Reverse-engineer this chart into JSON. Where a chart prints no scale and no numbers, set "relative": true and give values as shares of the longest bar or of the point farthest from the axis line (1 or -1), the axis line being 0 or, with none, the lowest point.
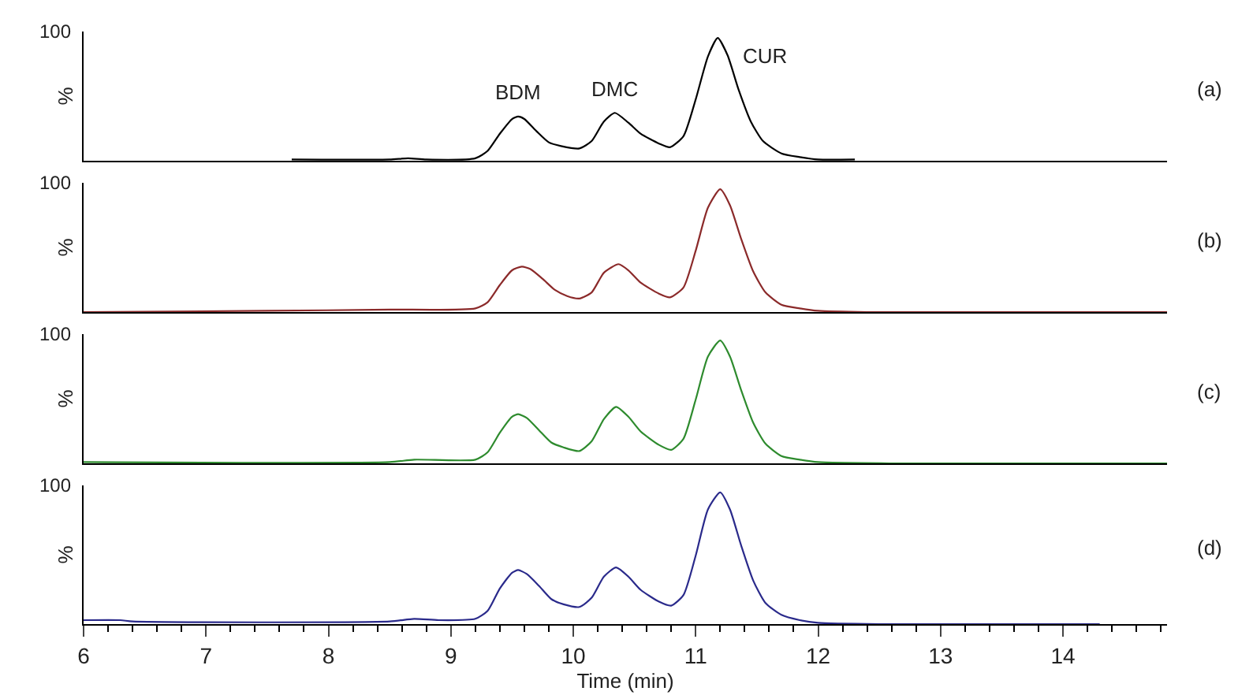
{
  "chart_data": [
    {
      "type": "line",
      "ylabel": "%",
      "relative": true,
      "xlim": [
        6,
        14.85
      ],
      "xticks": [
        6,
        7,
        8,
        9,
        10,
        11,
        12,
        13,
        14
      ],
      "tick_labels": false,
      "series": [
        {
          "color": "#000000",
          "x": [
            7.7,
            8.5,
            8.65,
            8.8,
            9.2,
            9.3,
            9.4,
            9.5,
            9.55,
            9.6,
            9.7,
            9.8,
            9.9,
            10.05,
            10.15,
            10.25,
            10.34,
            10.45,
            10.55,
            10.7,
            10.79,
            10.9,
            11.0,
            11.1,
            11.18,
            11.26,
            11.35,
            11.45,
            11.55,
            11.7,
            11.85,
            12.0,
            12.3
          ],
          "values": [
            0.01,
            0.01,
            0.02,
            0.01,
            0.02,
            0.08,
            0.22,
            0.34,
            0.36,
            0.34,
            0.24,
            0.15,
            0.12,
            0.1,
            0.16,
            0.32,
            0.39,
            0.31,
            0.22,
            0.14,
            0.11,
            0.2,
            0.5,
            0.85,
            1,
            0.86,
            0.58,
            0.32,
            0.16,
            0.06,
            0.03,
            0.01,
            0.01
          ]
        }
      ],
      "annotations": [
        "100",
        {
          "text": "BDM",
          "x": 9.55,
          "y": 0.36
        },
        {
          "text": "DMC",
          "x": 10.34,
          "y": 0.39
        },
        "CUR",
        "(a)"
      ]
    },
    {
      "type": "line",
      "ylabel": "%",
      "relative": true,
      "xlim": [
        6,
        14.85
      ],
      "xticks": [
        6,
        7,
        8,
        9,
        10,
        11,
        12,
        13,
        14
      ],
      "tick_labels": false,
      "series": [
        {
          "color": "#8b2a2a",
          "x": [
            6,
            7.5,
            8.5,
            9.2,
            9.3,
            9.4,
            9.5,
            9.58,
            9.65,
            9.75,
            9.85,
            9.95,
            10.05,
            10.15,
            10.25,
            10.37,
            10.45,
            10.55,
            10.7,
            10.79,
            10.9,
            11.0,
            11.1,
            11.2,
            11.28,
            11.37,
            11.47,
            11.57,
            11.7,
            11.85,
            12.0,
            12.4,
            13.85,
            14.85
          ],
          "values": [
            0,
            0.01,
            0.02,
            0.03,
            0.08,
            0.22,
            0.34,
            0.37,
            0.35,
            0.27,
            0.18,
            0.13,
            0.11,
            0.16,
            0.32,
            0.39,
            0.34,
            0.24,
            0.15,
            0.12,
            0.2,
            0.5,
            0.85,
            1,
            0.87,
            0.6,
            0.33,
            0.16,
            0.06,
            0.03,
            0.01,
            0,
            0,
            0
          ]
        }
      ],
      "annotations": [
        "100",
        "(b)"
      ]
    },
    {
      "type": "line",
      "ylabel": "%",
      "relative": true,
      "xlim": [
        6,
        14.85
      ],
      "xticks": [
        6,
        7,
        8,
        9,
        10,
        11,
        12,
        13,
        14
      ],
      "tick_labels": false,
      "series": [
        {
          "color": "#2e8b2e",
          "x": [
            6,
            8.5,
            8.7,
            9.2,
            9.3,
            9.4,
            9.5,
            9.55,
            9.62,
            9.72,
            9.82,
            9.92,
            10.05,
            10.15,
            10.25,
            10.35,
            10.45,
            10.55,
            10.7,
            10.8,
            10.9,
            11.0,
            11.1,
            11.2,
            11.28,
            11.37,
            11.47,
            11.57,
            11.7,
            11.85,
            12.0,
            12.6,
            14.85
          ],
          "values": [
            0.01,
            0.01,
            0.03,
            0.03,
            0.09,
            0.25,
            0.38,
            0.4,
            0.37,
            0.27,
            0.17,
            0.13,
            0.1,
            0.18,
            0.36,
            0.46,
            0.38,
            0.26,
            0.15,
            0.11,
            0.2,
            0.52,
            0.87,
            1,
            0.87,
            0.6,
            0.33,
            0.16,
            0.06,
            0.03,
            0.01,
            0,
            0
          ]
        }
      ],
      "annotations": [
        "100",
        "(c)"
      ]
    },
    {
      "type": "line",
      "xlabel": "Time (min)",
      "ylabel": "%",
      "relative": true,
      "xlim": [
        6,
        14.85
      ],
      "xticks": [
        6,
        7,
        8,
        9,
        10,
        11,
        12,
        13,
        14
      ],
      "tick_labels": "x",
      "series": [
        {
          "color": "#2a2a8b",
          "x": [
            6,
            6.3,
            6.4,
            8.5,
            8.7,
            8.9,
            9.2,
            9.3,
            9.4,
            9.5,
            9.55,
            9.62,
            9.72,
            9.82,
            9.92,
            10.05,
            10.15,
            10.25,
            10.35,
            10.45,
            10.55,
            10.7,
            10.8,
            10.9,
            11.0,
            11.1,
            11.2,
            11.28,
            11.37,
            11.47,
            11.57,
            11.7,
            11.85,
            12.0,
            12.5,
            14.3
          ],
          "values": [
            0.03,
            0.03,
            0.02,
            0.02,
            0.04,
            0.03,
            0.04,
            0.1,
            0.27,
            0.39,
            0.41,
            0.38,
            0.29,
            0.19,
            0.15,
            0.13,
            0.2,
            0.36,
            0.43,
            0.36,
            0.26,
            0.17,
            0.14,
            0.22,
            0.52,
            0.87,
            1,
            0.87,
            0.6,
            0.33,
            0.16,
            0.07,
            0.03,
            0.01,
            0,
            0
          ]
        }
      ],
      "annotations": [
        "100",
        "(d)"
      ]
    }
  ]
}
